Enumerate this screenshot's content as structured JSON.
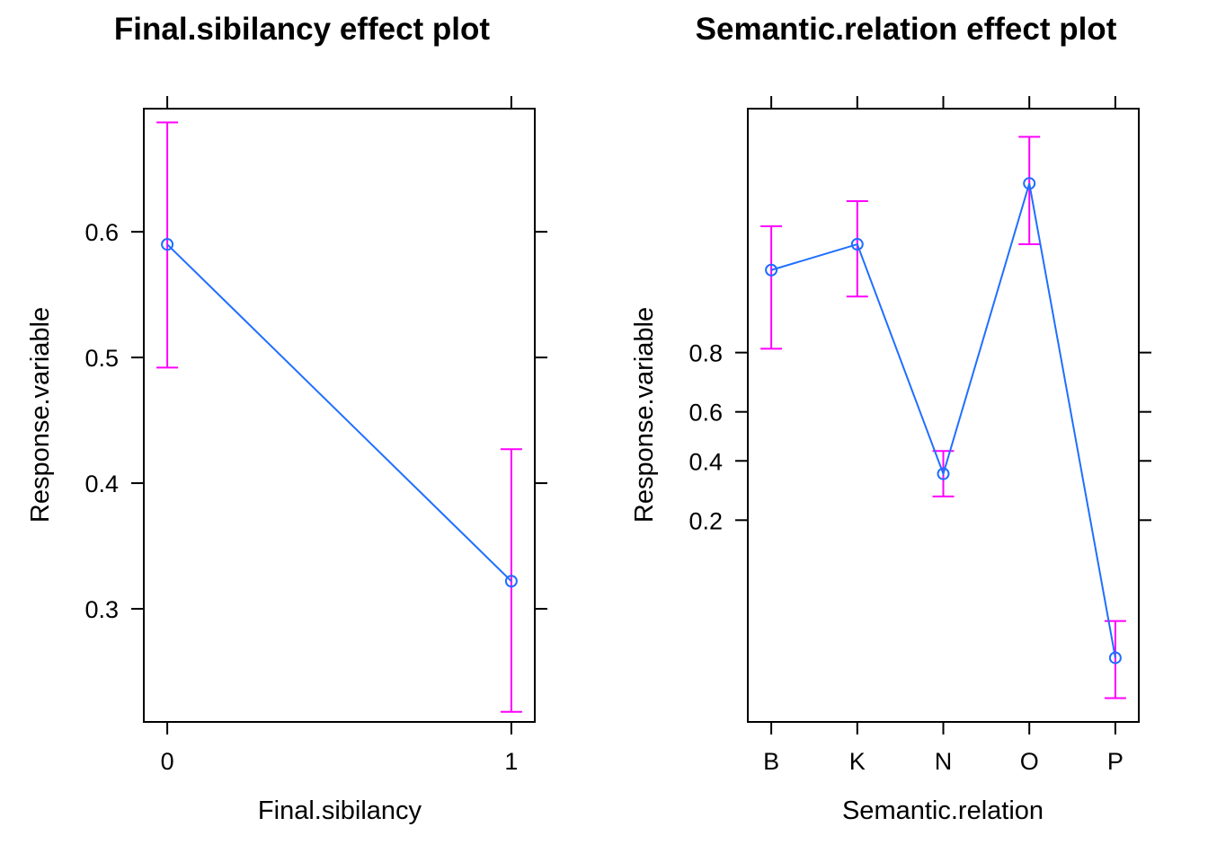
{
  "colors": {
    "line": "#1f6fff",
    "ci": "#ff00ff",
    "frame": "#000000"
  },
  "chart_data": [
    {
      "type": "line",
      "title": "Final.sibilancy effect plot",
      "xlabel": "Final.sibilancy",
      "ylabel": "Response.variable",
      "categories": [
        "0",
        "1"
      ],
      "values": [
        0.59,
        0.322
      ],
      "lower": [
        0.492,
        0.218
      ],
      "upper": [
        0.687,
        0.427
      ],
      "y_ticks": [
        0.3,
        0.4,
        0.5,
        0.6
      ],
      "y_tick_labels": [
        "0.3",
        "0.4",
        "0.5",
        "0.6"
      ],
      "ylim": [
        0.21,
        0.698
      ],
      "y_scale": "linear",
      "grid": false
    },
    {
      "type": "line",
      "title": "Semantic.relation effect plot",
      "xlabel": "Semantic.relation",
      "ylabel": "Response.variable",
      "categories": [
        "B",
        "K",
        "N",
        "O",
        "P"
      ],
      "values": [
        0.94,
        0.96,
        0.35,
        0.985,
        0.025
      ],
      "lower": [
        0.81,
        0.91,
        0.27,
        0.96,
        0.013
      ],
      "upper": [
        0.97,
        0.98,
        0.44,
        0.993,
        0.045
      ],
      "y_ticks": [
        0.2,
        0.4,
        0.6,
        0.8
      ],
      "y_tick_labels": [
        "0.2",
        "0.4",
        "0.6",
        "0.8"
      ],
      "ylim": [
        0.0088,
        0.9956
      ],
      "y_scale": "logit",
      "grid": false
    }
  ]
}
